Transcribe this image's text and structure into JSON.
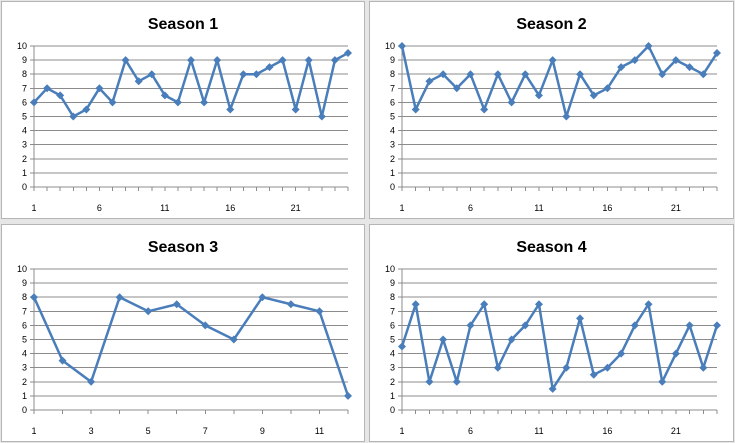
{
  "chart_data": [
    {
      "type": "line",
      "title": "Season 1",
      "color": "#4a7ebb",
      "ylim": [
        0,
        10
      ],
      "yticks": [
        0,
        1,
        2,
        3,
        4,
        5,
        6,
        7,
        8,
        9,
        10
      ],
      "xticks": [
        1,
        6,
        11,
        16,
        21
      ],
      "grid": true,
      "legend": "none",
      "x": [
        1,
        2,
        3,
        4,
        5,
        6,
        7,
        8,
        9,
        10,
        11,
        12,
        13,
        14,
        15,
        16,
        17,
        18,
        19,
        20,
        21,
        22,
        23,
        24,
        25
      ],
      "values": [
        6,
        7,
        6.5,
        5,
        5.5,
        7,
        6,
        9,
        7.5,
        8,
        6.5,
        6,
        9,
        6,
        9,
        5.5,
        8,
        8,
        8.5,
        9,
        5.5,
        9,
        5,
        9,
        9.5
      ]
    },
    {
      "type": "line",
      "title": "Season 2",
      "color": "#4a7ebb",
      "ylim": [
        0,
        10
      ],
      "yticks": [
        0,
        1,
        2,
        3,
        4,
        5,
        6,
        7,
        8,
        9,
        10
      ],
      "xticks": [
        1,
        6,
        11,
        16,
        21
      ],
      "grid": true,
      "legend": "none",
      "x": [
        1,
        2,
        3,
        4,
        5,
        6,
        7,
        8,
        9,
        10,
        11,
        12,
        13,
        14,
        15,
        16,
        17,
        18,
        19,
        20,
        21,
        22,
        23,
        24
      ],
      "values": [
        10,
        5.5,
        7.5,
        8,
        7,
        8,
        5.5,
        8,
        6,
        8,
        6.5,
        9,
        5,
        8,
        6.5,
        7,
        8.5,
        9,
        10,
        8,
        9,
        8.5,
        8,
        9.5
      ]
    },
    {
      "type": "line",
      "title": "Season 3",
      "color": "#4a7ebb",
      "ylim": [
        0,
        10
      ],
      "yticks": [
        0,
        1,
        2,
        3,
        4,
        5,
        6,
        7,
        8,
        9,
        10
      ],
      "xticks": [
        1,
        3,
        5,
        7,
        9,
        11
      ],
      "grid": true,
      "legend": "none",
      "x": [
        1,
        2,
        3,
        4,
        5,
        6,
        7,
        8,
        9,
        10,
        11,
        12
      ],
      "values": [
        8,
        3.5,
        2,
        8,
        7,
        7.5,
        6,
        5,
        8,
        7.5,
        7,
        1
      ]
    },
    {
      "type": "line",
      "title": "Season 4",
      "color": "#4a7ebb",
      "ylim": [
        0,
        10
      ],
      "yticks": [
        0,
        1,
        2,
        3,
        4,
        5,
        6,
        7,
        8,
        9,
        10
      ],
      "xticks": [
        1,
        6,
        11,
        16,
        21
      ],
      "grid": true,
      "legend": "none",
      "x": [
        1,
        2,
        3,
        4,
        5,
        6,
        7,
        8,
        9,
        10,
        11,
        12,
        13,
        14,
        15,
        16,
        17,
        18,
        19,
        20,
        21,
        22,
        23,
        24
      ],
      "values": [
        4.5,
        7.5,
        2,
        5,
        2,
        6,
        7.5,
        3,
        5,
        6,
        7.5,
        1.5,
        3,
        6.5,
        2.5,
        3,
        4,
        6,
        7.5,
        2,
        4,
        6,
        3,
        6
      ]
    }
  ]
}
